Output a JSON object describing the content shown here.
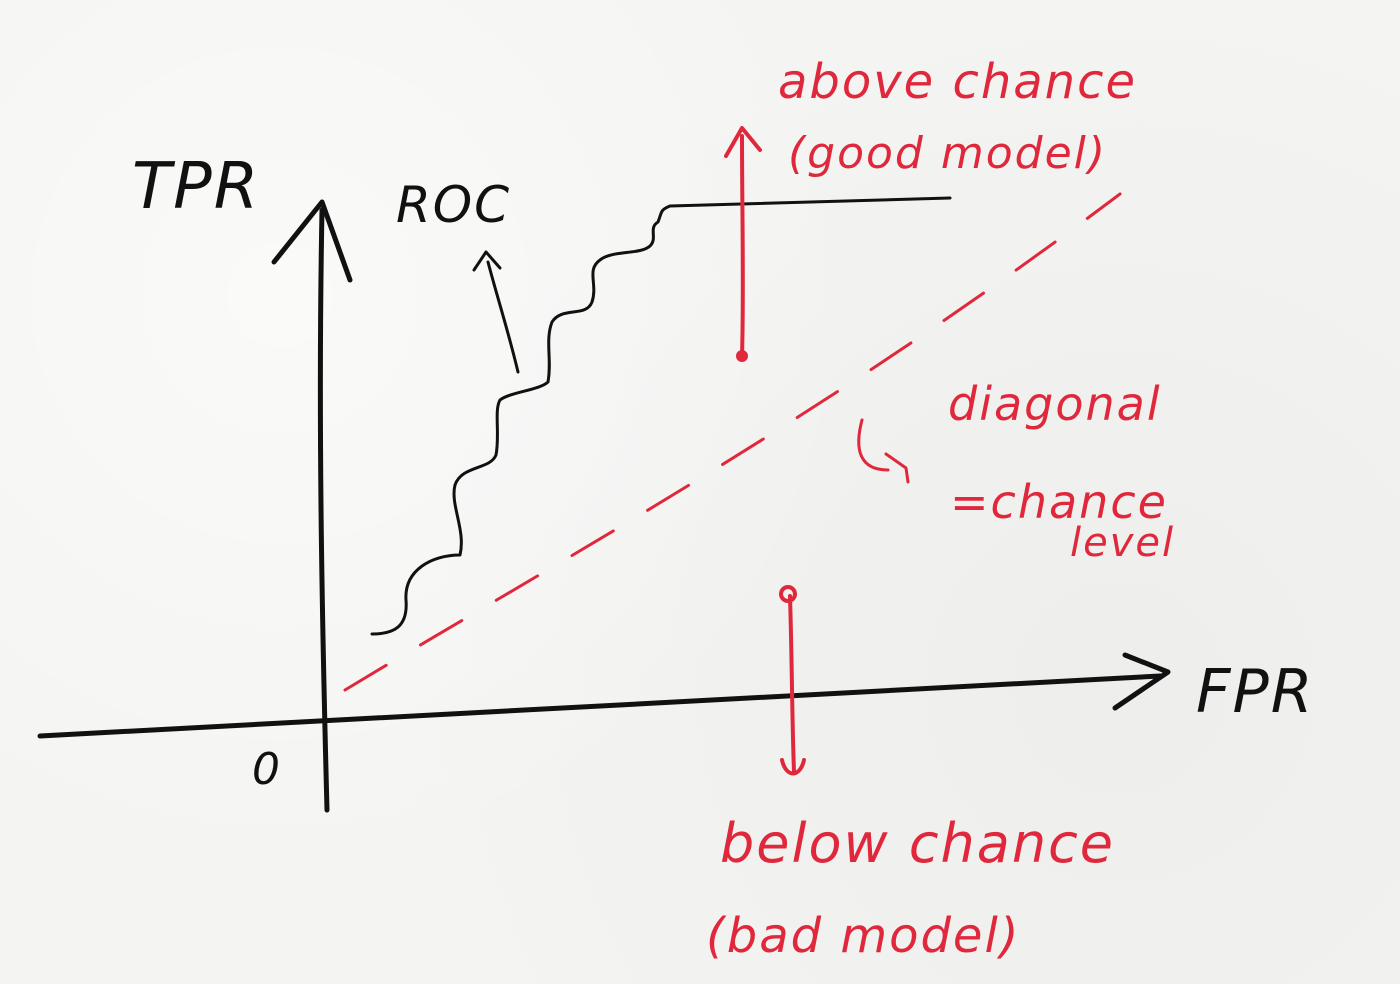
{
  "labels": {
    "y_axis": "TPR",
    "x_axis": "FPR",
    "origin": "0",
    "curve": "ROC",
    "above_line1": "above chance",
    "above_line2": "(good model)",
    "diagonal_line1": "diagonal",
    "diagonal_line2": "=chance",
    "diagonal_line3": "level",
    "below_line1": "below chance",
    "below_line2": "(bad model)"
  },
  "colors": {
    "ink": "#111111",
    "accent": "#e0283c",
    "paper": "#f4f4f2"
  }
}
